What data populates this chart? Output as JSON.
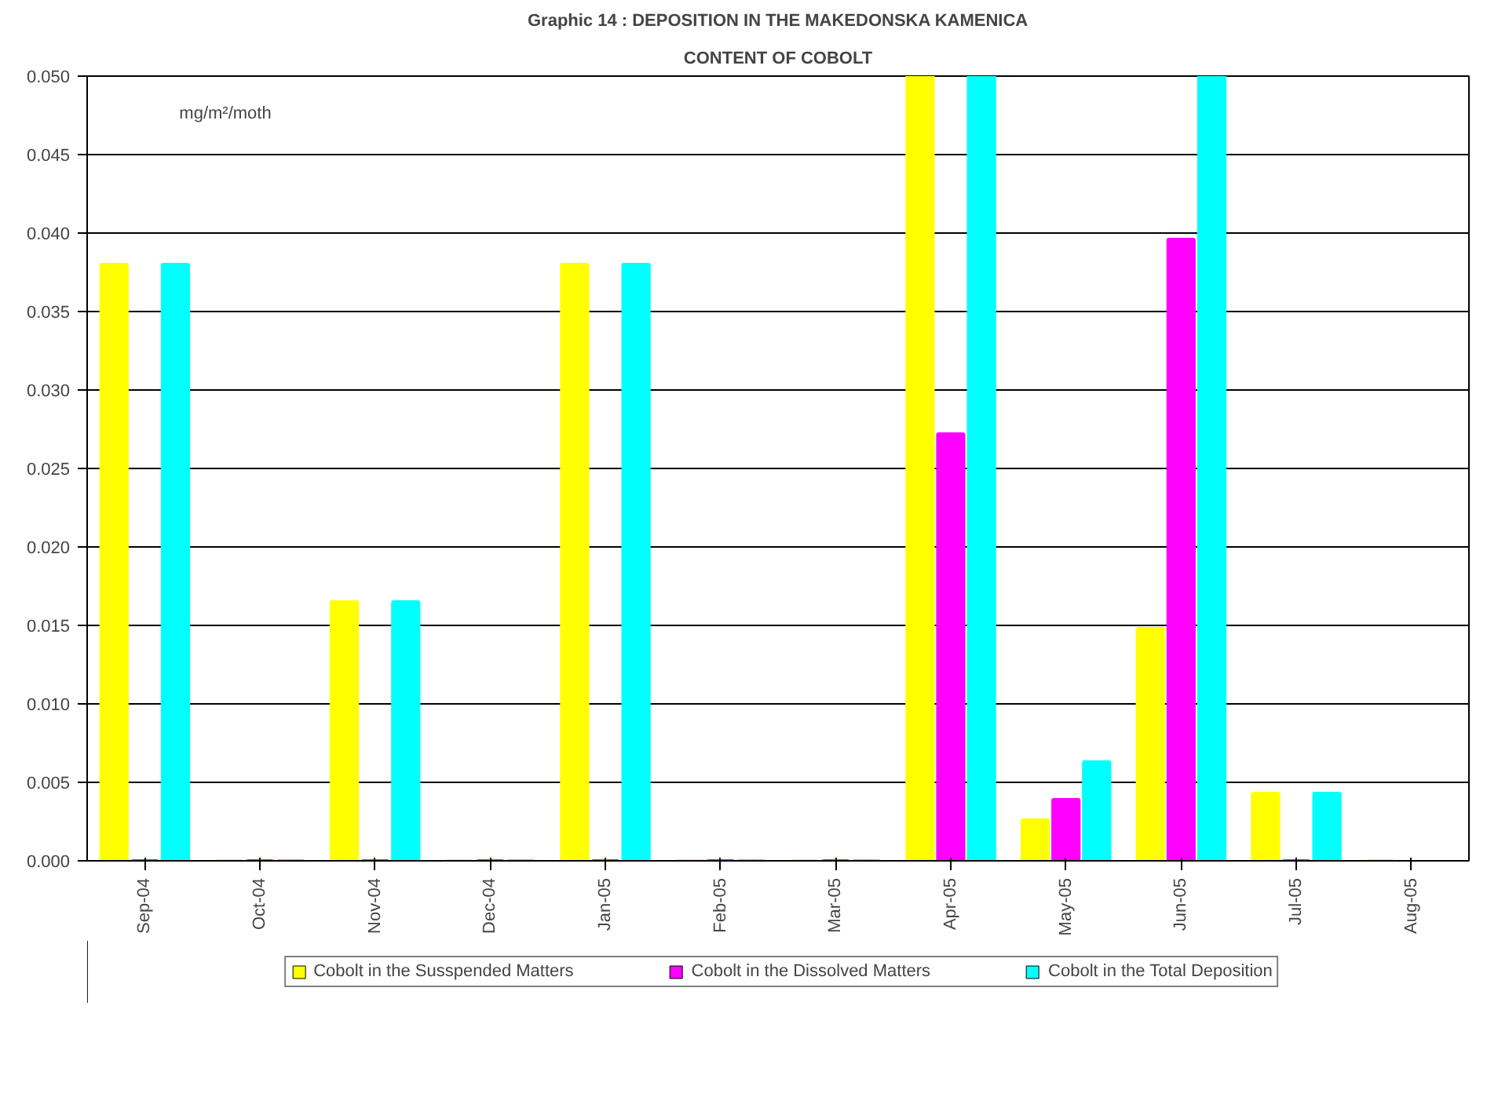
{
  "chart_data": {
    "type": "bar",
    "title": "Graphic 14 : DEPOSITION IN THE MAKEDONSKA KAMENICA",
    "subtitle": "CONTENT OF COBOLT",
    "categories": [
      "Sep-04",
      "Oct-04",
      "Nov-04",
      "Dec-04",
      "Jan-05",
      "Feb-05",
      "Mar-05",
      "Apr-05",
      "May-05",
      "Jun-05",
      "Jul-05",
      "Aug-05"
    ],
    "series": [
      {
        "name": "Cobolt in the Susspended Matters",
        "color": "#ffff00",
        "values": [
          0.038,
          0,
          0.0165,
          0,
          0.038,
          0,
          0,
          0.05,
          0.0026,
          0.0148,
          0.0043,
          0
        ]
      },
      {
        "name": "Cobolt in the Dissolved Matters",
        "color": "#ff00ff",
        "values": [
          0,
          0,
          0,
          0,
          0,
          0,
          0,
          0.0272,
          0.0039,
          0.0396,
          0,
          null
        ]
      },
      {
        "name": "Cobolt in the Total Deposition",
        "color": "#00ffff",
        "values": [
          0.038,
          0,
          0.0165,
          0,
          0.038,
          0,
          0,
          0.05,
          0.0063,
          0.05,
          0.0043,
          null
        ]
      }
    ],
    "ylim": [
      0,
      0.05
    ],
    "yticks": [
      {
        "value": 0,
        "label": "0.000"
      },
      {
        "value": 0.005,
        "label": "0.005"
      },
      {
        "value": 0.01,
        "label": "0.010"
      },
      {
        "value": 0.015,
        "label": "0.015"
      },
      {
        "value": 0.02,
        "label": "0.020"
      },
      {
        "value": 0.025,
        "label": "0.025"
      },
      {
        "value": 0.03,
        "label": "0.030"
      },
      {
        "value": 0.035,
        "label": "0.035"
      },
      {
        "value": 0.04,
        "label": "0.040"
      },
      {
        "value": 0.045,
        "label": "0.045"
      },
      {
        "value": 0.05,
        "label": "0.050"
      }
    ],
    "annotations": [
      "mg/m²/moth"
    ],
    "grid": "y",
    "legend": "bottom"
  }
}
